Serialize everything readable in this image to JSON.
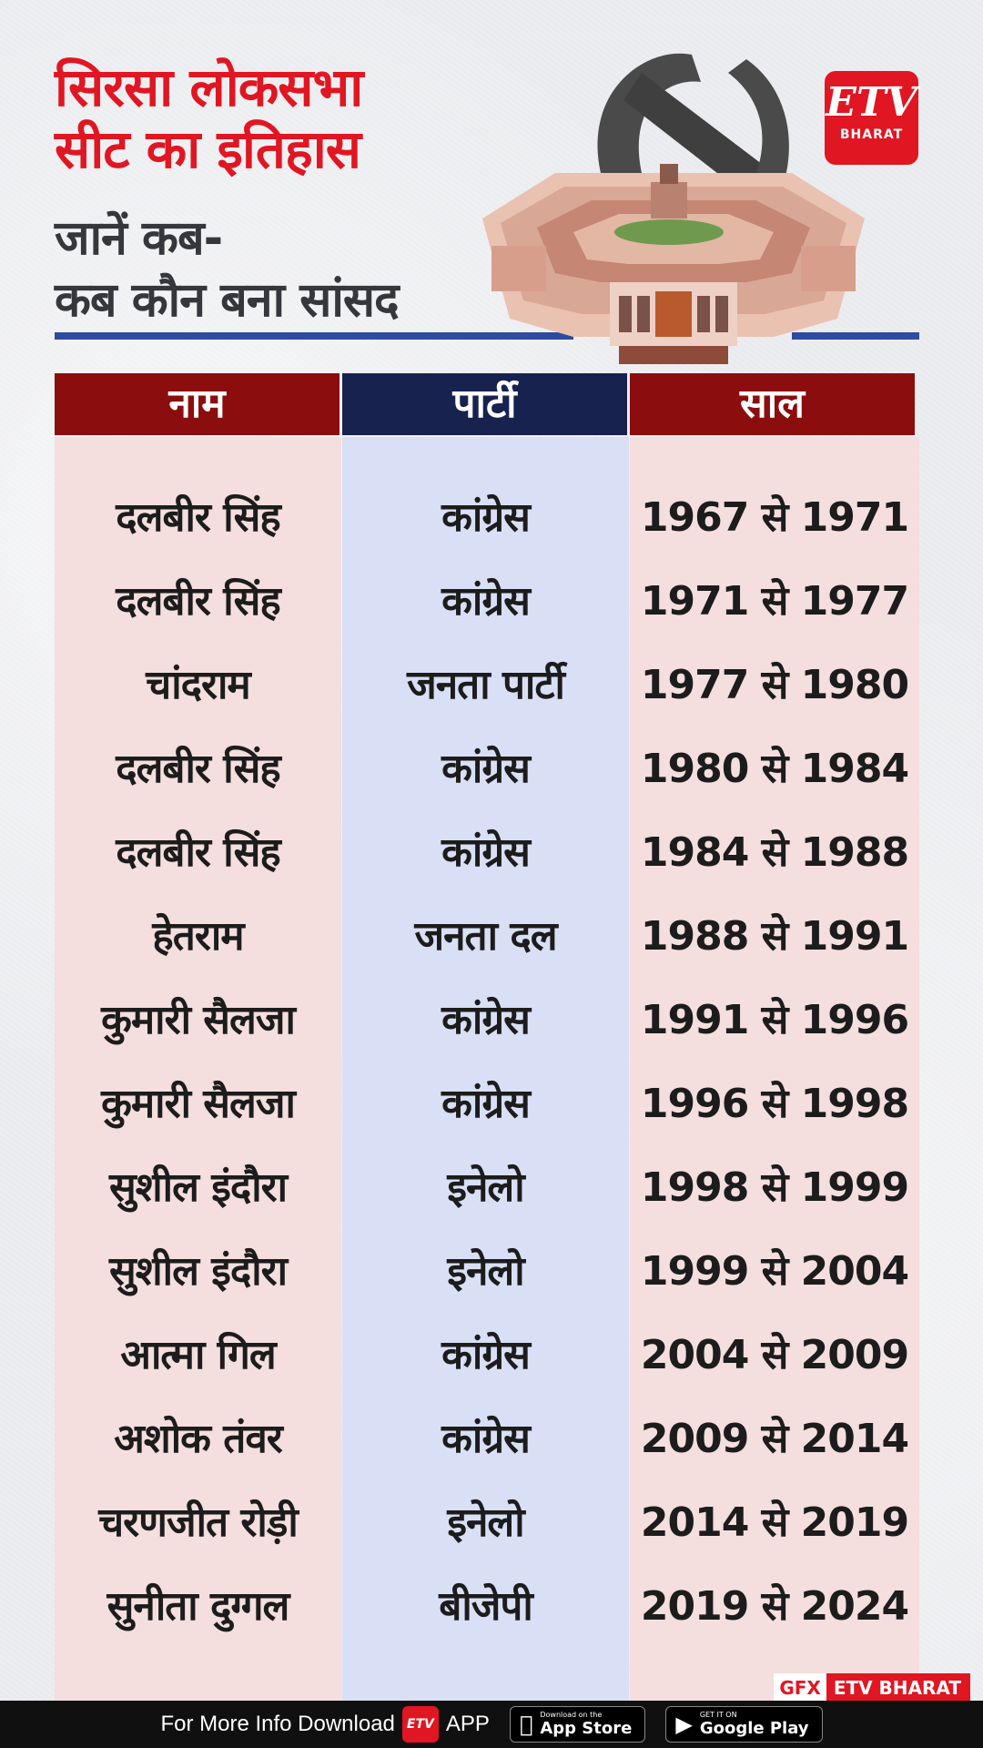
{
  "title": {
    "line1": "सिरसा लोकसभा",
    "line2": "सीट का इतिहास"
  },
  "subtitle": {
    "line1": "जानें कब-",
    "line2": "कब कौन बना सांसद"
  },
  "logo": {
    "etv": "ETV",
    "bharat": "BHARAT"
  },
  "table": {
    "headers": {
      "name": "नाम",
      "party": "पार्टी",
      "year": "साल"
    },
    "rows": [
      {
        "name": "दलबीर सिंह",
        "party": "कांग्रेस",
        "year": "1967 से 1971"
      },
      {
        "name": "दलबीर सिंह",
        "party": "कांग्रेस",
        "year": "1971 से 1977"
      },
      {
        "name": "चांदराम",
        "party": "जनता पार्टी",
        "year": "1977 से 1980"
      },
      {
        "name": "दलबीर सिंह",
        "party": "कांग्रेस",
        "year": "1980 से 1984"
      },
      {
        "name": "दलबीर सिंह",
        "party": "कांग्रेस",
        "year": "1984 से 1988"
      },
      {
        "name": "हेतराम",
        "party": "जनता दल",
        "year": "1988 से 1991"
      },
      {
        "name": "कुमारी सैलजा",
        "party": "कांग्रेस",
        "year": "1991 से 1996"
      },
      {
        "name": "कुमारी सैलजा",
        "party": "कांग्रेस",
        "year": "1996 से 1998"
      },
      {
        "name": "सुशील इंदौरा",
        "party": "इनेलो",
        "year": "1998 से 1999"
      },
      {
        "name": "सुशील इंदौरा",
        "party": "इनेलो",
        "year": "1999 से 2004"
      },
      {
        "name": "आत्मा गिल",
        "party": "कांग्रेस",
        "year": "2004 से 2009"
      },
      {
        "name": "अशोक तंवर",
        "party": "कांग्रेस",
        "year": "2009 से 2014"
      },
      {
        "name": "चरणजीत रोड़ी",
        "party": "इनेलो",
        "year": "2014 से 2019"
      },
      {
        "name": "सुनीता दुग्गल",
        "party": "बीजेपी",
        "year": "2019 से 2024"
      }
    ]
  },
  "credit": {
    "gfx": "GFX",
    "brand": "ETV BHARAT"
  },
  "footer": {
    "text": "For More Info Download",
    "app": "APP",
    "app_store": {
      "small": "Download on the",
      "big": "App Store"
    },
    "google_play": {
      "small": "GET IT ON",
      "big": "Google Play"
    }
  },
  "colors": {
    "title_red": "#e01622",
    "header_maroon": "#8b0d0d",
    "header_navy": "#17224f",
    "rule_blue": "#2e4ba1",
    "name_col_bg": "#f4dede",
    "party_col_bg": "#d9dff5"
  },
  "icons": {
    "emblem": "voting-mark-icon",
    "building": "parliament-building-icon",
    "apple": "apple-icon",
    "play": "google-play-icon"
  }
}
